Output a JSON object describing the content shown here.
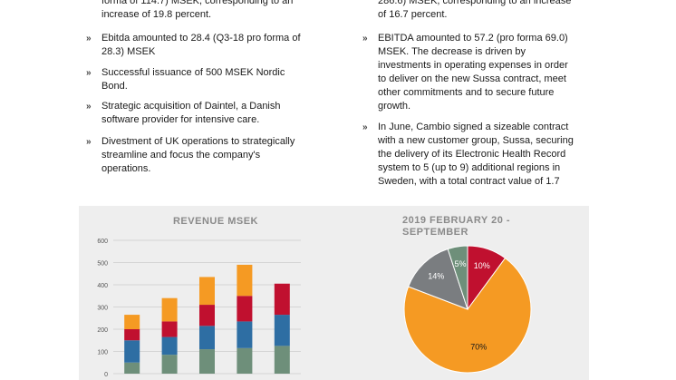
{
  "left_column": {
    "items": [
      {
        "text": "forma of 114.7) MSEK, corresponding to an increase of 19.8 percent.",
        "lines": [
          "forma of 114.7) MSEK, corresponding to an",
          "increase of 19.8 percent."
        ],
        "has_marker": false
      },
      {
        "text": "Ebitda amounted to 28.4 (Q3-18 pro forma of 28.3) MSEK",
        "lines": [
          "Ebitda amounted to 28.4 (Q3-18 pro forma of",
          "28.3) MSEK"
        ],
        "has_marker": true
      },
      {
        "text": "Successful issuance of 500 MSEK Nordic Bond.",
        "lines": [
          "Successful issuance of 500 MSEK Nordic",
          "Bond."
        ],
        "has_marker": true
      },
      {
        "text": "Strategic acquisition of Daintel, a Danish software provider for intensive care.",
        "lines": [
          "Strategic acquisition of Daintel, a Danish",
          "software provider for intensive care."
        ],
        "has_marker": true
      },
      {
        "text": "Divestment of UK operations to strategically streamline and focus the company's operations.",
        "lines": [
          "Divestment of UK operations to strategically",
          "streamline and focus the company's",
          "operations."
        ],
        "has_marker": true
      }
    ]
  },
  "right_column": {
    "items": [
      {
        "text": "286.6) MSEK, corresponding to an increase of 16.7 percent.",
        "lines": [
          "286.6) MSEK, corresponding to an increase",
          "of 16.7 percent."
        ],
        "has_marker": false
      },
      {
        "text": "EBITDA amounted to 57.2 (pro forma 69.0) MSEK. The decrease is driven by investments in operating expenses in order to deliver on the new Sussa contract, meet other commitments and to secure future growth.",
        "lines": [
          "EBITDA amounted to 57.2 (pro forma 69.0)",
          "MSEK. The decrease is driven by",
          "investments in operating expenses in order",
          "to deliver on the new Sussa contract, meet",
          "other commitments and to secure future",
          "growth."
        ],
        "has_marker": true
      },
      {
        "text": "In June, Cambio signed a sizeable contract with a new customer group, Sussa, securing the delivery of its Electronic Health Record system to 5 (up to 9) additional regions in Sweden, with a total contract value of 1.7",
        "lines": [
          "In June, Cambio signed a sizeable contract",
          "with a new customer group, Sussa, securing",
          "the delivery of its Electronic Health Record",
          "system to 5 (up to 9) additional regions in",
          "Sweden, with a total contract value of 1.7"
        ],
        "has_marker": true
      }
    ]
  },
  "bullet_glyph": "»",
  "chart_data": [
    {
      "type": "bar",
      "stacked": true,
      "title": "REVENUE MSEK",
      "ylim": [
        0,
        600
      ],
      "yticks": [
        0,
        100,
        200,
        300,
        400,
        500,
        600
      ],
      "categories": [
        "",
        "",
        "",
        "",
        ""
      ],
      "series": [
        {
          "color": "#6e8f7a",
          "values": [
            50,
            85,
            110,
            115,
            125
          ]
        },
        {
          "color": "#2e6ea3",
          "values": [
            100,
            80,
            105,
            120,
            140
          ]
        },
        {
          "color": "#c0102f",
          "values": [
            50,
            70,
            95,
            115,
            140
          ]
        },
        {
          "color": "#f59a23",
          "values": [
            65,
            105,
            125,
            140,
            0
          ]
        }
      ],
      "grid": true,
      "legend": "none"
    },
    {
      "type": "pie",
      "title": "2019 FEBRUARY 20 - SEPTEMBER",
      "slices": [
        {
          "label": "10%",
          "value": 10,
          "color": "#c0102f"
        },
        {
          "label": "70%",
          "value": 70,
          "color": "#f59a23"
        },
        {
          "label": "14%",
          "value": 14,
          "color": "#7a7d80"
        },
        {
          "label": "5%",
          "value": 5,
          "color": "#6e8f7a"
        }
      ]
    }
  ]
}
